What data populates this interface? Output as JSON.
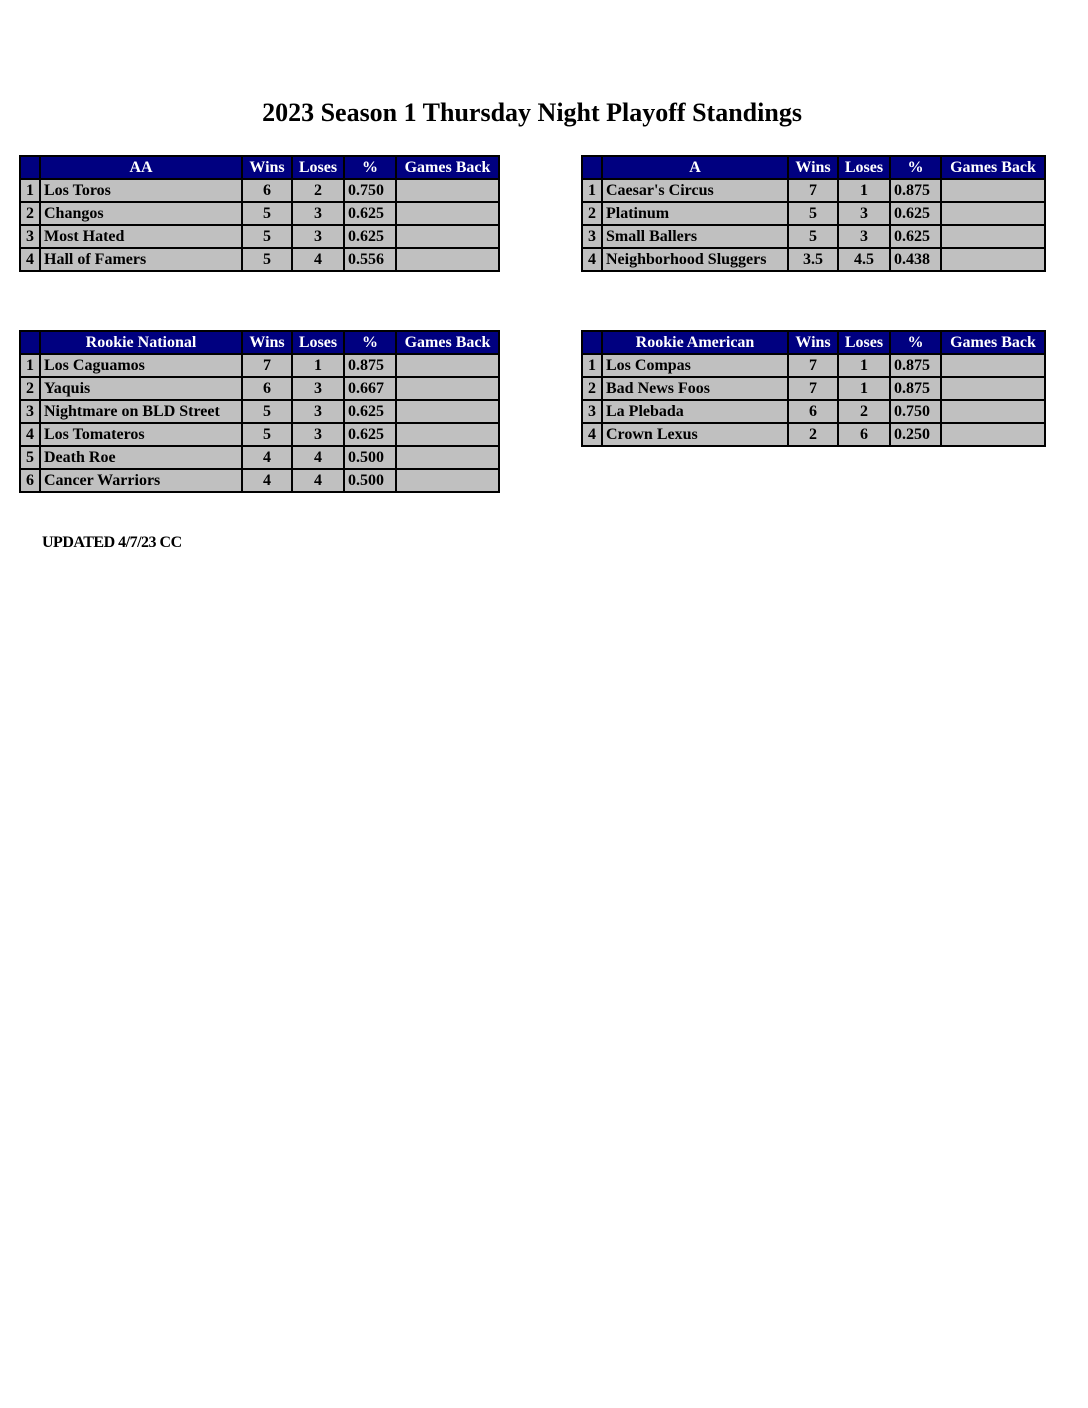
{
  "title": "2023 Season 1 Thursday Night Playoff Standings",
  "columns": {
    "wins": "Wins",
    "loses": "Loses",
    "pct": "%",
    "games_back": "Games Back"
  },
  "colors": {
    "header_bg": "#000080",
    "cell_bg": "#c0c0c0"
  },
  "divisions": [
    {
      "id": "t-aa",
      "name": "AA",
      "widths": [
        20,
        202,
        50,
        52,
        52,
        103
      ],
      "teams": [
        {
          "rank": "1",
          "team": "Los Toros",
          "wins": "6",
          "loses": "2",
          "pct": "0.750",
          "games_back": ""
        },
        {
          "rank": "2",
          "team": "Changos",
          "wins": "5",
          "loses": "3",
          "pct": "0.625",
          "games_back": ""
        },
        {
          "rank": "3",
          "team": "Most Hated",
          "wins": "5",
          "loses": "3",
          "pct": "0.625",
          "games_back": ""
        },
        {
          "rank": "4",
          "team": "Hall of Famers",
          "wins": "5",
          "loses": "4",
          "pct": "0.556",
          "games_back": ""
        }
      ]
    },
    {
      "id": "t-a",
      "name": "A",
      "widths": [
        20,
        186,
        50,
        52,
        51,
        104
      ],
      "teams": [
        {
          "rank": "1",
          "team": "Caesar's Circus",
          "wins": "7",
          "loses": "1",
          "pct": "0.875",
          "games_back": ""
        },
        {
          "rank": "2",
          "team": "Platinum",
          "wins": "5",
          "loses": "3",
          "pct": "0.625",
          "games_back": ""
        },
        {
          "rank": "3",
          "team": "Small Ballers",
          "wins": "5",
          "loses": "3",
          "pct": "0.625",
          "games_back": ""
        },
        {
          "rank": "4",
          "team": "Neighborhood Sluggers",
          "wins": "3.5",
          "loses": "4.5",
          "pct": "0.438",
          "games_back": ""
        }
      ]
    },
    {
      "id": "t-rn",
      "name": "Rookie National",
      "widths": [
        20,
        202,
        50,
        52,
        52,
        103
      ],
      "teams": [
        {
          "rank": "1",
          "team": "Los Caguamos",
          "wins": "7",
          "loses": "1",
          "pct": "0.875",
          "games_back": ""
        },
        {
          "rank": "2",
          "team": "Yaquis",
          "wins": "6",
          "loses": "3",
          "pct": "0.667",
          "games_back": ""
        },
        {
          "rank": "3",
          "team": "Nightmare on BLD Street",
          "wins": "5",
          "loses": "3",
          "pct": "0.625",
          "games_back": ""
        },
        {
          "rank": "4",
          "team": "Los Tomateros",
          "wins": "5",
          "loses": "3",
          "pct": "0.625",
          "games_back": ""
        },
        {
          "rank": "5",
          "team": "Death Roe",
          "wins": "4",
          "loses": "4",
          "pct": "0.500",
          "games_back": ""
        },
        {
          "rank": "6",
          "team": "Cancer Warriors",
          "wins": "4",
          "loses": "4",
          "pct": "0.500",
          "games_back": ""
        }
      ]
    },
    {
      "id": "t-ra",
      "name": "Rookie American",
      "widths": [
        20,
        186,
        50,
        52,
        51,
        104
      ],
      "teams": [
        {
          "rank": "1",
          "team": "Los Compas",
          "wins": "7",
          "loses": "1",
          "pct": "0.875",
          "games_back": ""
        },
        {
          "rank": "2",
          "team": "Bad News Foos",
          "wins": "7",
          "loses": "1",
          "pct": "0.875",
          "games_back": ""
        },
        {
          "rank": "3",
          "team": "La Plebada",
          "wins": "6",
          "loses": "2",
          "pct": "0.750",
          "games_back": ""
        },
        {
          "rank": "4",
          "team": "Crown Lexus",
          "wins": "2",
          "loses": "6",
          "pct": "0.250",
          "games_back": ""
        }
      ]
    }
  ],
  "footer": {
    "updated": "UPDATED 4/7/23 CC"
  }
}
